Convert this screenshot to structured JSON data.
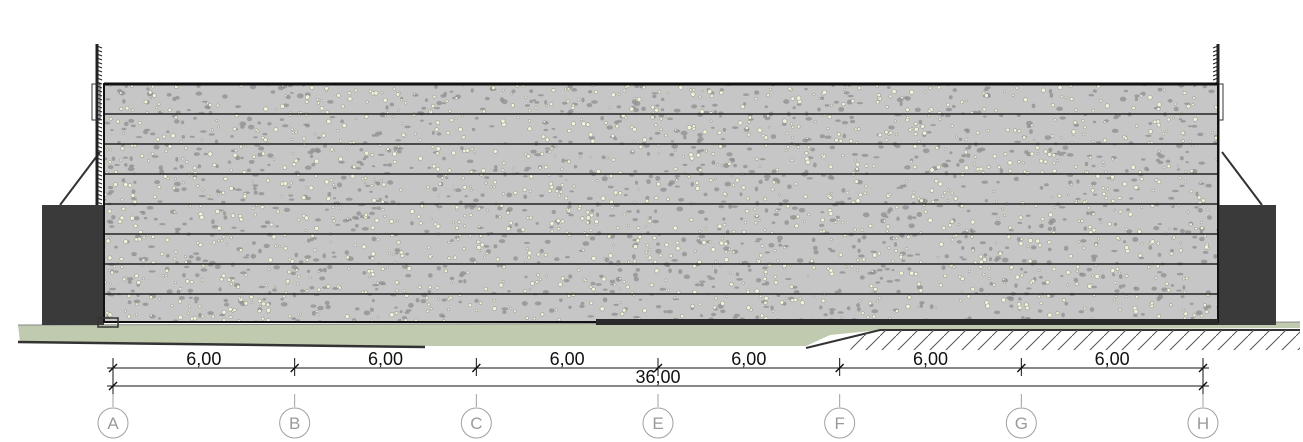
{
  "dimensions": {
    "segments": [
      {
        "from": "A",
        "to": "B",
        "label": "6,00",
        "value": 6.0
      },
      {
        "from": "B",
        "to": "C",
        "label": "6,00",
        "value": 6.0
      },
      {
        "from": "C",
        "to": "E",
        "label": "6,00",
        "value": 6.0
      },
      {
        "from": "E",
        "to": "F",
        "label": "6,00",
        "value": 6.0
      },
      {
        "from": "F",
        "to": "G",
        "label": "6,00",
        "value": 6.0
      },
      {
        "from": "G",
        "to": "H",
        "label": "6,00",
        "value": 6.0
      }
    ],
    "total": {
      "from": "A",
      "to": "H",
      "label": "36,00",
      "value": 36.0
    }
  },
  "grid_axes": [
    "A",
    "B",
    "C",
    "E",
    "F",
    "G",
    "H"
  ],
  "colors": {
    "panel_fill": "#c6c6c6",
    "panel_lines": "#222222",
    "speckle_light": "#f2f2d8",
    "speckle_dark": "#8e8e8e",
    "side_blocks": "#3a3a3a",
    "ground": "#bfcaae",
    "grid_bubble": "#a0a0a0"
  }
}
